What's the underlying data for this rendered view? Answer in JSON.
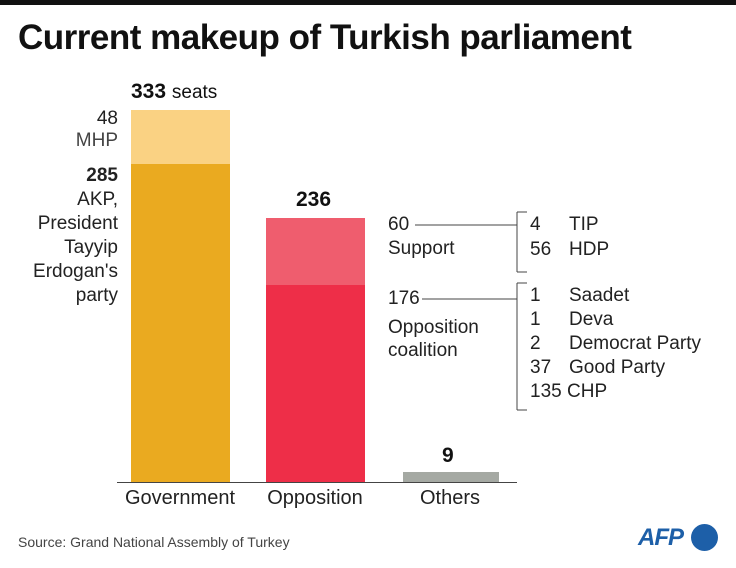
{
  "title": "Current makeup of Turkish parliament",
  "source": "Source: Grand National Assembly of Turkey",
  "logo": "AFP",
  "chart_data": {
    "type": "bar",
    "stacked": true,
    "categories": [
      "Government",
      "Opposition",
      "Others"
    ],
    "totals": [
      333,
      236,
      9
    ],
    "total_unit": "seats",
    "segments": {
      "government": [
        {
          "value": 285,
          "label": "AKP,\nPresident\nTayyip\nErdogan's\nparty",
          "color": "#eaaa20"
        },
        {
          "value": 48,
          "label": "MHP",
          "color": "#fad283"
        }
      ],
      "opposition": [
        {
          "value": 176,
          "label": "Opposition coalition",
          "color": "#ee2e48"
        },
        {
          "value": 60,
          "label": "Support",
          "color": "#ef5d6e"
        }
      ],
      "others": [
        {
          "value": 9,
          "label": "",
          "color": "#a5a9a3"
        }
      ]
    },
    "support_breakdown": [
      {
        "value": 4,
        "party": "TIP"
      },
      {
        "value": 56,
        "party": "HDP"
      }
    ],
    "coalition_breakdown": [
      {
        "value": 1,
        "party": "Saadet"
      },
      {
        "value": 1,
        "party": "Deva"
      },
      {
        "value": 2,
        "party": "Democrat Party"
      },
      {
        "value": 37,
        "party": "Good Party"
      },
      {
        "value": 135,
        "party": "CHP"
      }
    ],
    "labels": {
      "total_seats_number": "333",
      "total_seats_unit": "seats",
      "mhp_number": "48",
      "mhp_label": "MHP",
      "akp_number": "285",
      "akp_line1": "AKP,",
      "akp_line2": "President",
      "akp_line3": "Tayyip",
      "akp_line4": "Erdogan's",
      "akp_line5": "party",
      "opposition_total": "236",
      "support_number": "60",
      "support_label": "Support",
      "coalition_number": "176",
      "coalition_line1": "Opposition",
      "coalition_line2": "coalition",
      "others_total": "9"
    }
  }
}
